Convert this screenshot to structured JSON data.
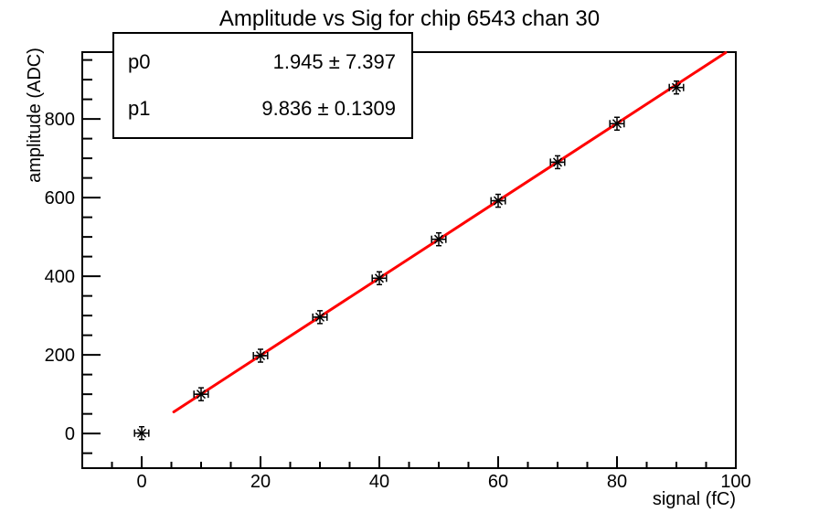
{
  "chart_data": {
    "type": "scatter",
    "title": "Amplitude vs Sig for chip 6543 chan 30",
    "xlabel": "signal (fC)",
    "ylabel": "amplitude (ADC)",
    "x": [
      0,
      10,
      20,
      30,
      40,
      50,
      60,
      70,
      80,
      90
    ],
    "y": [
      1,
      100,
      198,
      296,
      395,
      494,
      592,
      690,
      788,
      880
    ],
    "x_error": 1.2,
    "y_error": 3,
    "xlim": [
      -10,
      100
    ],
    "ylim": [
      -88,
      970
    ],
    "x_major_ticks": [
      0,
      20,
      40,
      60,
      80,
      100
    ],
    "x_minor_step": 5,
    "y_major_ticks": [
      0,
      200,
      400,
      600,
      800
    ],
    "y_minor_step": 50,
    "grid": false,
    "legend": null,
    "marker": "asterisk",
    "marker_color": "#000000",
    "frame_color": "#000000",
    "fit_line": {
      "color": "#ff0000",
      "p0": 1.945,
      "p1": 9.836,
      "x_start": 5.4,
      "x_end": 98.3
    }
  },
  "stats_box": {
    "rows": [
      {
        "name": "p0",
        "value": "1.945 ± 7.397"
      },
      {
        "name": "p1",
        "value": "9.836 ± 0.1309"
      }
    ]
  }
}
